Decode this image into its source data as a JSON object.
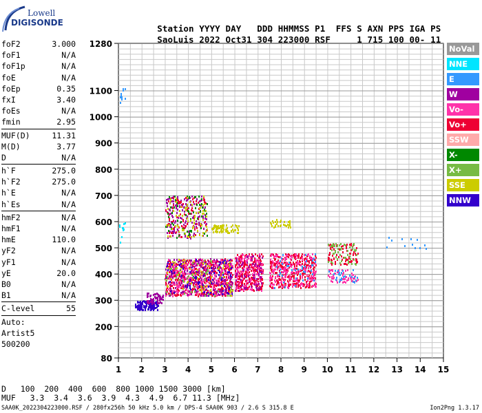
{
  "logo": {
    "line1": "Lowell",
    "line2": "DIGISONDE"
  },
  "header": {
    "labels": [
      "Station",
      "YYYY",
      "DAY",
      "DDD",
      "HHMMSS",
      "P1",
      "FFS",
      "S",
      "AXN",
      "PPS",
      "IGA",
      "PS"
    ],
    "values": [
      "SaoLuis",
      "2022",
      "Oct31",
      "304",
      "223000",
      "RSF",
      "1",
      "715",
      "100",
      "00-",
      "11"
    ]
  },
  "params": [
    {
      "key": "foF2",
      "value": "3.000"
    },
    {
      "key": "foF1",
      "value": "N/A"
    },
    {
      "key": "foF1p",
      "value": "N/A"
    },
    {
      "key": "foE",
      "value": "N/A"
    },
    {
      "key": "foEp",
      "value": "0.35"
    },
    {
      "key": "fxI",
      "value": "3.40"
    },
    {
      "key": "foEs",
      "value": "N/A"
    },
    {
      "key": "fmin",
      "value": "2.95"
    },
    {
      "sep": true
    },
    {
      "key": "MUF(D)",
      "value": "11.31"
    },
    {
      "key": "M(D)",
      "value": "3.77"
    },
    {
      "key": "D",
      "value": "N/A"
    },
    {
      "sep": true
    },
    {
      "key": "h`F",
      "value": "275.0"
    },
    {
      "key": "h`F2",
      "value": "275.0"
    },
    {
      "key": "h`E",
      "value": "N/A"
    },
    {
      "key": "h`Es",
      "value": "N/A"
    },
    {
      "sep": true
    },
    {
      "key": "hmF2",
      "value": "N/A"
    },
    {
      "key": "hmF1",
      "value": "N/A"
    },
    {
      "key": "hmE",
      "value": "110.0"
    },
    {
      "key": "yF2",
      "value": "N/A"
    },
    {
      "key": "yF1",
      "value": "N/A"
    },
    {
      "key": "yE",
      "value": "20.0"
    },
    {
      "key": "B0",
      "value": "N/A"
    },
    {
      "key": "B1",
      "value": "N/A"
    },
    {
      "sep": true
    },
    {
      "key": "C-level",
      "value": "55"
    },
    {
      "sep": true
    }
  ],
  "artist": [
    "Auto:",
    "Artist5",
    "500200"
  ],
  "legend": [
    {
      "label": "NoVal",
      "color": "#999999"
    },
    {
      "label": "NNE",
      "color": "#00e5ff"
    },
    {
      "label": "E",
      "color": "#3399ff"
    },
    {
      "label": "W",
      "color": "#a000a0"
    },
    {
      "label": "Vo-",
      "color": "#ff33aa"
    },
    {
      "label": "Vo+",
      "color": "#ee0033"
    },
    {
      "label": "SSW",
      "color": "#ffaaaa"
    },
    {
      "label": "X-",
      "color": "#008800"
    },
    {
      "label": "X+",
      "color": "#77bb44"
    },
    {
      "label": "SSE",
      "color": "#cccc00"
    },
    {
      "label": "NNW",
      "color": "#3300cc"
    }
  ],
  "chart_data": {
    "type": "scatter",
    "x_ticks": [
      "1",
      "2",
      "3",
      "4",
      "5",
      "6",
      "7",
      "8",
      "9",
      "10",
      "11",
      "12",
      "13",
      "14",
      "15"
    ],
    "y_ticks": [
      "80",
      "200",
      "300",
      "400",
      "500",
      "600",
      "700",
      "800",
      "900",
      "1000",
      "1100",
      "1280"
    ],
    "xlim": [
      1,
      15
    ],
    "ylim": [
      80,
      1280
    ],
    "grid": true,
    "x_unit": "MHz",
    "y_unit": "km",
    "clusters": [
      {
        "x": [
          1.7,
          2.7
        ],
        "y": [
          265,
          300
        ],
        "color": "#3300cc",
        "n": 140
      },
      {
        "x": [
          2.2,
          2.9
        ],
        "y": [
          290,
          330
        ],
        "color": "#a000a0",
        "n": 60
      },
      {
        "x": [
          3.0,
          5.9
        ],
        "y": [
          320,
          460
        ],
        "color": "#ee0033",
        "n": 520
      },
      {
        "x": [
          3.0,
          5.9
        ],
        "y": [
          320,
          460
        ],
        "color": "#ff33aa",
        "n": 320
      },
      {
        "x": [
          3.0,
          5.9
        ],
        "y": [
          320,
          460
        ],
        "color": "#a000a0",
        "n": 200
      },
      {
        "x": [
          3.0,
          5.9
        ],
        "y": [
          320,
          460
        ],
        "color": "#3300cc",
        "n": 90
      },
      {
        "x": [
          3.0,
          5.9
        ],
        "y": [
          320,
          460
        ],
        "color": "#cccc00",
        "n": 60
      },
      {
        "x": [
          3.0,
          5.9
        ],
        "y": [
          320,
          460
        ],
        "color": "#77bb44",
        "n": 50
      },
      {
        "x": [
          3.0,
          4.8
        ],
        "y": [
          540,
          700
        ],
        "color": "#a000a0",
        "n": 160
      },
      {
        "x": [
          3.0,
          4.8
        ],
        "y": [
          540,
          700
        ],
        "color": "#ee0033",
        "n": 90
      },
      {
        "x": [
          3.0,
          4.8
        ],
        "y": [
          540,
          700
        ],
        "color": "#008800",
        "n": 60
      },
      {
        "x": [
          3.0,
          4.8
        ],
        "y": [
          540,
          700
        ],
        "color": "#cccc00",
        "n": 70
      },
      {
        "x": [
          5.0,
          6.2
        ],
        "y": [
          560,
          590
        ],
        "color": "#cccc00",
        "n": 70
      },
      {
        "x": [
          6.0,
          7.2
        ],
        "y": [
          340,
          480
        ],
        "color": "#ee0033",
        "n": 260
      },
      {
        "x": [
          6.0,
          7.2
        ],
        "y": [
          340,
          480
        ],
        "color": "#ff33aa",
        "n": 140
      },
      {
        "x": [
          6.0,
          7.2
        ],
        "y": [
          340,
          480
        ],
        "color": "#a000a0",
        "n": 70
      },
      {
        "x": [
          7.5,
          9.5
        ],
        "y": [
          350,
          480
        ],
        "color": "#ee0033",
        "n": 320
      },
      {
        "x": [
          7.5,
          9.5
        ],
        "y": [
          350,
          480
        ],
        "color": "#ff33aa",
        "n": 200
      },
      {
        "x": [
          7.5,
          9.5
        ],
        "y": [
          350,
          480
        ],
        "color": "#3399ff",
        "n": 40
      },
      {
        "x": [
          7.5,
          8.4
        ],
        "y": [
          580,
          610
        ],
        "color": "#cccc00",
        "n": 30
      },
      {
        "x": [
          10.0,
          11.3
        ],
        "y": [
          440,
          520
        ],
        "color": "#ee0033",
        "n": 90
      },
      {
        "x": [
          10.0,
          11.3
        ],
        "y": [
          440,
          520
        ],
        "color": "#77bb44",
        "n": 50
      },
      {
        "x": [
          10.0,
          11.3
        ],
        "y": [
          370,
          420
        ],
        "color": "#ff33aa",
        "n": 60
      },
      {
        "x": [
          10.0,
          11.3
        ],
        "y": [
          370,
          420
        ],
        "color": "#3399ff",
        "n": 25
      },
      {
        "x": [
          12.0,
          14.5
        ],
        "y": [
          500,
          545
        ],
        "color": "#3399ff",
        "n": 12
      },
      {
        "x": [
          1.0,
          1.3
        ],
        "y": [
          520,
          600
        ],
        "color": "#00e5ff",
        "n": 10
      },
      {
        "x": [
          1.0,
          1.3
        ],
        "y": [
          1040,
          1120
        ],
        "color": "#3399ff",
        "n": 10
      }
    ]
  },
  "table": {
    "D_label": "D",
    "D_values": [
      "100",
      "200",
      "400",
      "600",
      "800",
      "1000",
      "1500",
      "3000"
    ],
    "D_unit": "[km]",
    "MUF_label": "MUF",
    "MUF_values": [
      "3.3",
      "3.4",
      "3.6",
      "3.9",
      "4.3",
      "4.9",
      "6.7",
      "11.3"
    ],
    "MUF_unit": "[MHz]"
  },
  "footer": {
    "left": "SAA0K_2022304223000.RSF / 280fx256h 50 kHz 5.0 km / DPS-4 SAA0K 903 / 2.6 S 315.8 E",
    "right": "Ion2Png 1.3.17"
  }
}
